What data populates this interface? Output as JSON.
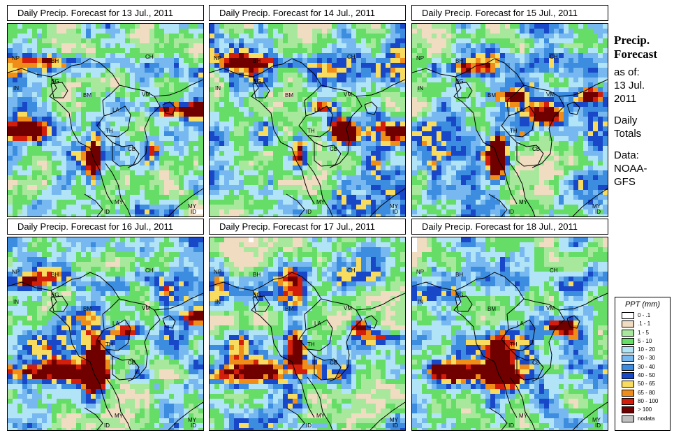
{
  "panels": [
    {
      "title": "Daily Precip. Forecast for  13 Jul., 2011"
    },
    {
      "title": "Daily Precip. Forecast for  14 Jul., 2011"
    },
    {
      "title": "Daily Precip. Forecast for  15 Jul., 2011"
    },
    {
      "title": "Daily Precip. Forecast for  16 Jul., 2011"
    },
    {
      "title": "Daily Precip. Forecast for  17 Jul., 2011"
    },
    {
      "title": "Daily Precip. Forecast for  18 Jul., 2011"
    }
  ],
  "country_labels": [
    "CH",
    "NP",
    "BH",
    "IN",
    "BG",
    "BM",
    "VM",
    "LA",
    "TH",
    "CB",
    "MY",
    "ID"
  ],
  "sidebar": {
    "title_line1": "Precip.",
    "title_line2": "Forecast",
    "asof_line1": "as of:",
    "asof_line2": "13 Jul.",
    "asof_line3": "2011",
    "daily_line1": "Daily",
    "daily_line2": "Totals",
    "data_line1": "Data:",
    "data_line2": "NOAA-",
    "data_line3": "GFS"
  },
  "legend": {
    "title": "PPT (mm)",
    "items": [
      {
        "label": "0 - .1",
        "color": "#ffffff"
      },
      {
        "label": ".1 - 1",
        "color": "#f0dcc0"
      },
      {
        "label": "1 - 5",
        "color": "#a8e89c"
      },
      {
        "label": "5 - 10",
        "color": "#66dd66"
      },
      {
        "label": "10 - 20",
        "color": "#b2e4f8"
      },
      {
        "label": "20 - 30",
        "color": "#78b8f0"
      },
      {
        "label": "30 - 40",
        "color": "#3c8ce0"
      },
      {
        "label": "40 - 50",
        "color": "#1848c8"
      },
      {
        "label": "50 - 65",
        "color": "#f8dc60"
      },
      {
        "label": "65 - 80",
        "color": "#f08c18"
      },
      {
        "label": "80 - 100",
        "color": "#d21e0a"
      },
      {
        "label": "> 100",
        "color": "#700000"
      },
      {
        "label": "nodata",
        "color": "#c0c0c0"
      }
    ]
  }
}
